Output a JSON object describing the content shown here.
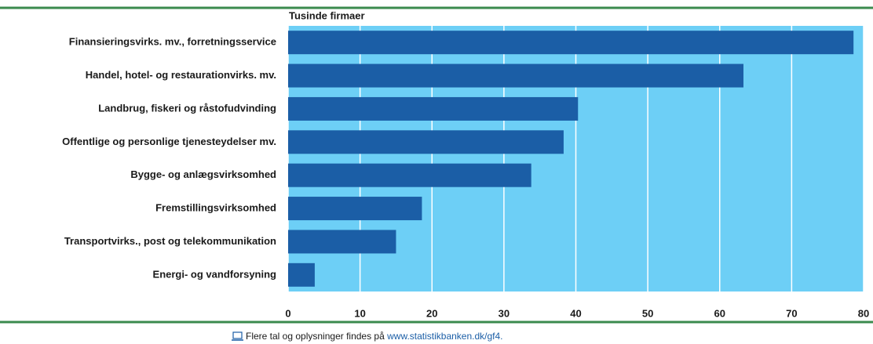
{
  "chart_data": {
    "type": "hbar",
    "title": "Tusinde firmaer",
    "categories": [
      "Finansieringsvirks. mv., forretningsservice",
      "Handel, hotel- og restaurationvirks. mv.",
      "Landbrug, fiskeri og råstofudvinding",
      "Offentlige og personlige tjenesteydelser mv.",
      "Bygge- og anlægsvirksomhed",
      "Fremstillingsvirksomhed",
      "Transportvirks., post og telekommunikation",
      "Energi- og vandforsyning"
    ],
    "values": [
      78.6,
      63.3,
      40.3,
      38.3,
      33.8,
      18.6,
      15.0,
      3.7
    ],
    "color": "#1b5ea6",
    "background": "#6dcff6",
    "xlim": [
      0,
      80
    ],
    "xticks": [
      0,
      10,
      20,
      30,
      40,
      50,
      60,
      70,
      80
    ],
    "grid": true
  },
  "footer": {
    "text": "Flere tal og oplysninger findes på ",
    "link": "www.statistikbanken.dk/gf4."
  }
}
